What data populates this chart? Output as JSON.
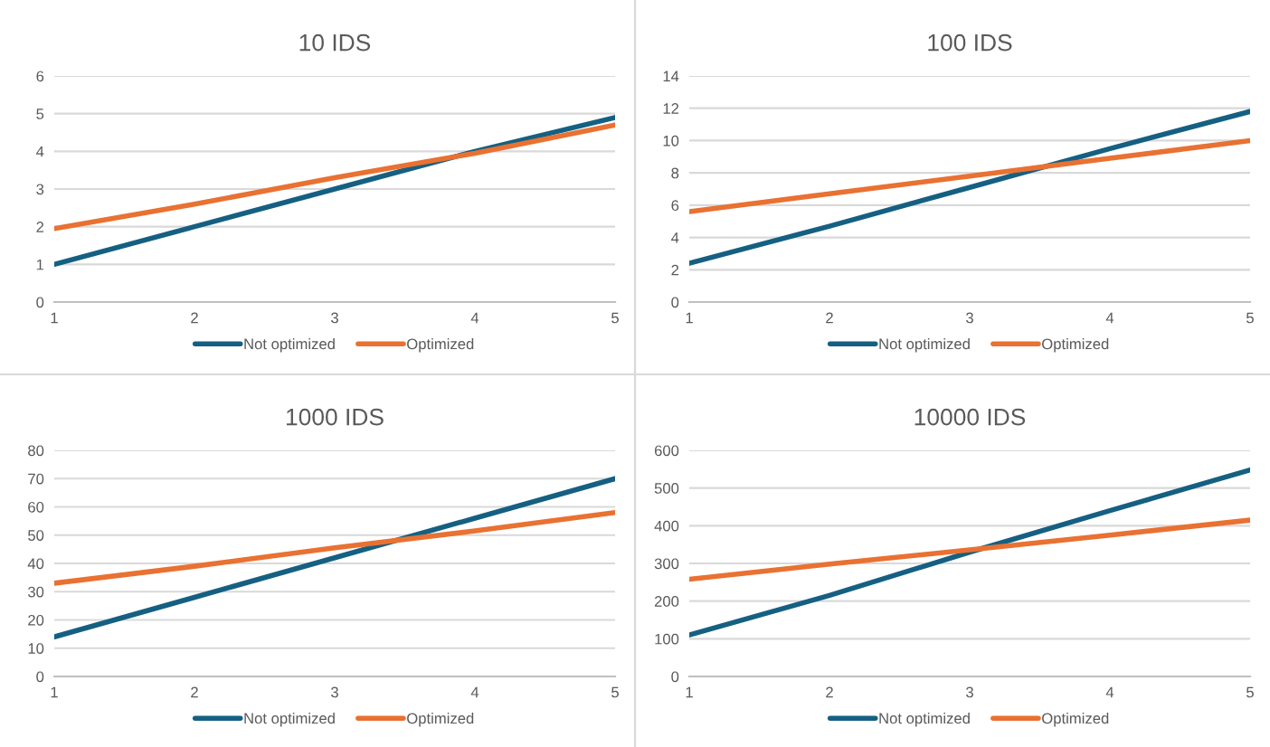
{
  "chart_data": [
    {
      "type": "line",
      "title": "10 IDS",
      "categories": [
        "1",
        "2",
        "3",
        "4",
        "5"
      ],
      "ylim": [
        0,
        6
      ],
      "yticks": [
        0,
        1,
        2,
        3,
        4,
        5,
        6
      ],
      "grid": "y",
      "legend": "bottom",
      "series": [
        {
          "name": "Not optimized",
          "color": "#156082",
          "values": [
            1,
            2,
            3,
            4,
            4.9
          ]
        },
        {
          "name": "Optimized",
          "color": "#e97132",
          "values": [
            1.95,
            2.6,
            3.3,
            3.95,
            4.7
          ]
        }
      ]
    },
    {
      "type": "line",
      "title": "100 IDS",
      "categories": [
        "1",
        "2",
        "3",
        "4",
        "5"
      ],
      "ylim": [
        0,
        14
      ],
      "yticks": [
        0,
        2,
        4,
        6,
        8,
        10,
        12,
        14
      ],
      "grid": "y",
      "legend": "bottom",
      "series": [
        {
          "name": "Not optimized",
          "color": "#156082",
          "values": [
            2.4,
            4.7,
            7.1,
            9.5,
            11.8
          ]
        },
        {
          "name": "Optimized",
          "color": "#e97132",
          "values": [
            5.6,
            6.7,
            7.8,
            8.9,
            10.0
          ]
        }
      ]
    },
    {
      "type": "line",
      "title": "1000 IDS",
      "categories": [
        "1",
        "2",
        "3",
        "4",
        "5"
      ],
      "ylim": [
        0,
        80
      ],
      "yticks": [
        0,
        10,
        20,
        30,
        40,
        50,
        60,
        70,
        80
      ],
      "grid": "y",
      "legend": "bottom",
      "series": [
        {
          "name": "Not optimized",
          "color": "#156082",
          "values": [
            14,
            28,
            42,
            56,
            70
          ]
        },
        {
          "name": "Optimized",
          "color": "#e97132",
          "values": [
            33,
            39,
            45.5,
            51.5,
            58
          ]
        }
      ]
    },
    {
      "type": "line",
      "title": "10000 IDS",
      "categories": [
        "1",
        "2",
        "3",
        "4",
        "5"
      ],
      "ylim": [
        0,
        600
      ],
      "yticks": [
        0,
        100,
        200,
        300,
        400,
        500,
        600
      ],
      "grid": "y",
      "legend": "bottom",
      "series": [
        {
          "name": "Not optimized",
          "color": "#156082",
          "values": [
            110,
            215,
            330,
            440,
            548
          ]
        },
        {
          "name": "Optimized",
          "color": "#e97132",
          "values": [
            258,
            298,
            336,
            375,
            415
          ]
        }
      ]
    }
  ]
}
